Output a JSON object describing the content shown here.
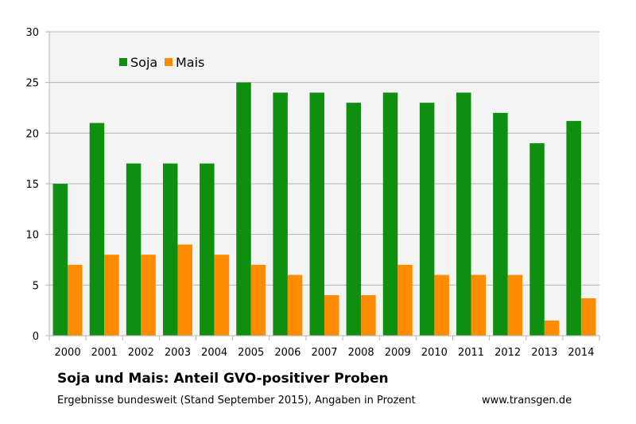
{
  "chart_data": {
    "type": "bar",
    "title": "Soja und Mais: Anteil GVO-positiver Proben",
    "subtitle": "Ergebnisse bundesweit (Stand September 2015), Angaben in Prozent",
    "source": "www.transgen.de",
    "categories": [
      "2000",
      "2001",
      "2002",
      "2003",
      "2004",
      "2005",
      "2006",
      "2007",
      "2008",
      "2009",
      "2010",
      "2011",
      "2012",
      "2013",
      "2014"
    ],
    "series": [
      {
        "name": "Soja",
        "color": "#0f8f0f",
        "values": [
          15,
          21,
          17,
          17,
          17,
          25,
          24,
          24,
          23,
          24,
          23,
          24,
          22,
          19,
          21.2
        ]
      },
      {
        "name": "Mais",
        "color": "#ff8c00",
        "values": [
          7,
          8,
          8,
          9,
          8,
          7,
          6,
          4,
          4,
          7,
          6,
          6,
          6,
          1.5,
          3.7
        ]
      }
    ],
    "ylim": [
      0,
      30
    ],
    "yticks": [
      0,
      5,
      10,
      15,
      20,
      25,
      30
    ],
    "grid": true,
    "legend_position": "top-left"
  }
}
